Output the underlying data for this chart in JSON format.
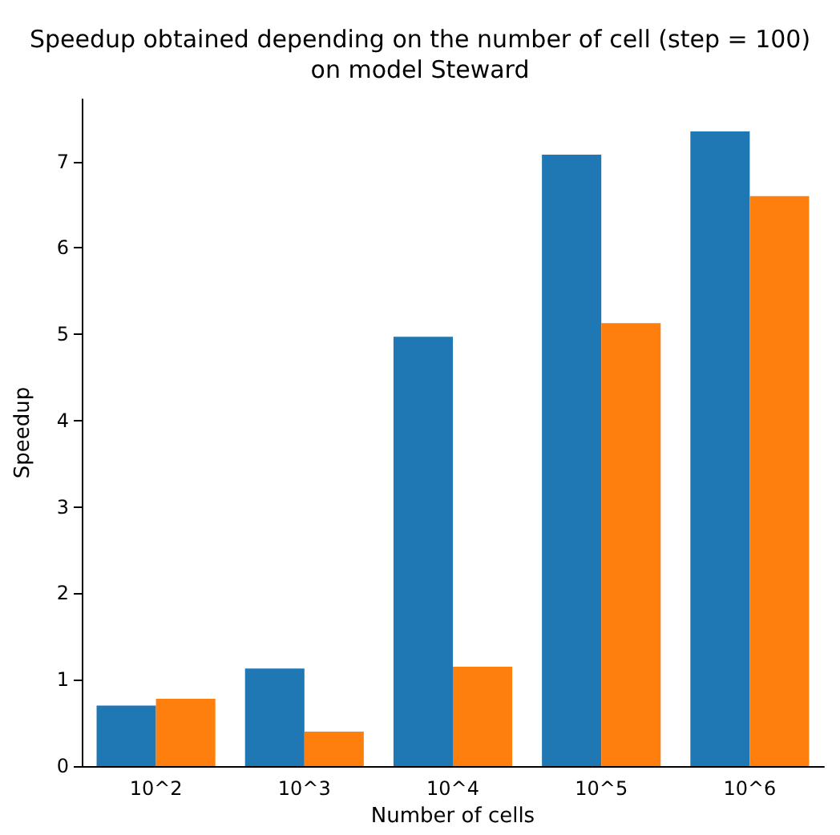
{
  "chart_data": {
    "type": "bar",
    "title": "Speedup obtained depending on the number of cell (step = 100)\non model Steward",
    "xlabel": "Number of cells",
    "ylabel": "Speedup",
    "categories": [
      "10^2",
      "10^3",
      "10^4",
      "10^5",
      "10^6"
    ],
    "series": [
      {
        "color": "#1f77b4",
        "values": [
          0.7,
          1.13,
          4.97,
          7.08,
          7.35
        ]
      },
      {
        "color": "#ff7f0e",
        "values": [
          0.78,
          0.4,
          1.15,
          5.13,
          6.6
        ]
      }
    ],
    "ylim": [
      0,
      7.72
    ],
    "yticks": [
      0,
      1,
      2,
      3,
      4,
      5,
      6,
      7
    ],
    "grid": false
  }
}
